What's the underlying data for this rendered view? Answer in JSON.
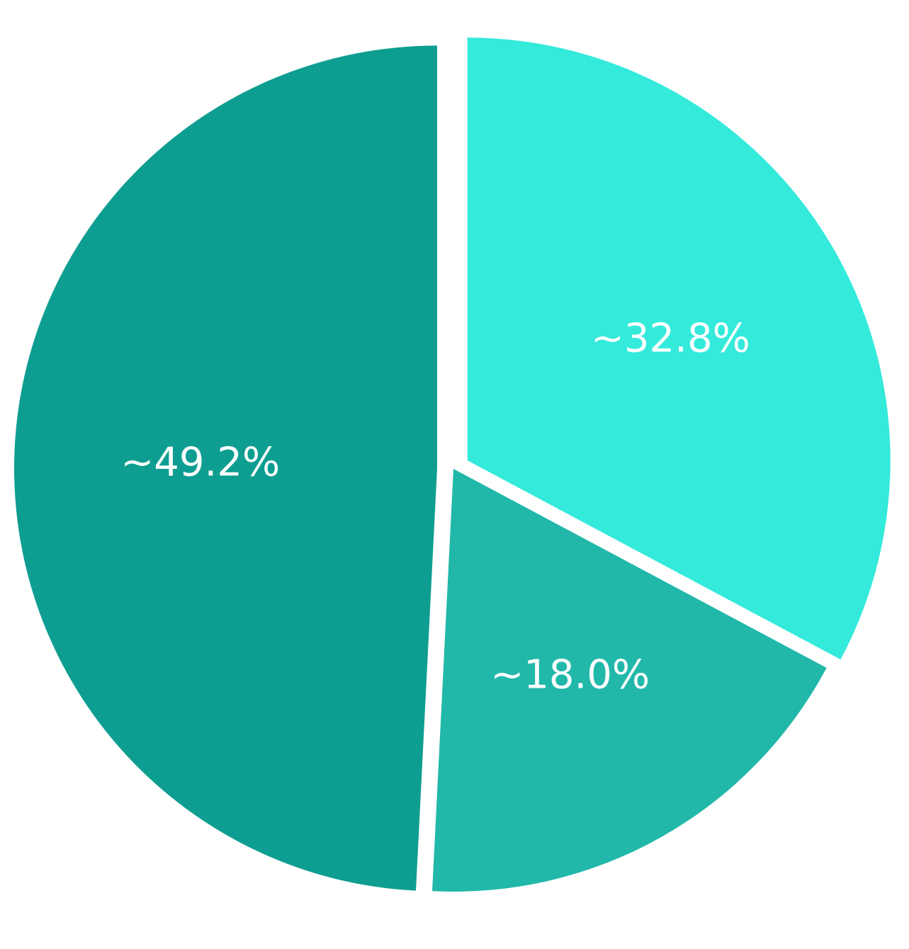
{
  "chart_data": {
    "type": "pie",
    "start_angle_deg": 0,
    "direction": "clockwise",
    "slices": [
      {
        "label": "~32.8%",
        "value": 32.8,
        "color": "#33eadb",
        "exploded": true
      },
      {
        "label": "~18.0%",
        "value": 18.0,
        "color": "#21b8aa",
        "exploded": false
      },
      {
        "label": "~49.2%",
        "value": 49.2,
        "color": "#0e9e91",
        "exploded": true
      }
    ],
    "background": "#ffffff"
  }
}
